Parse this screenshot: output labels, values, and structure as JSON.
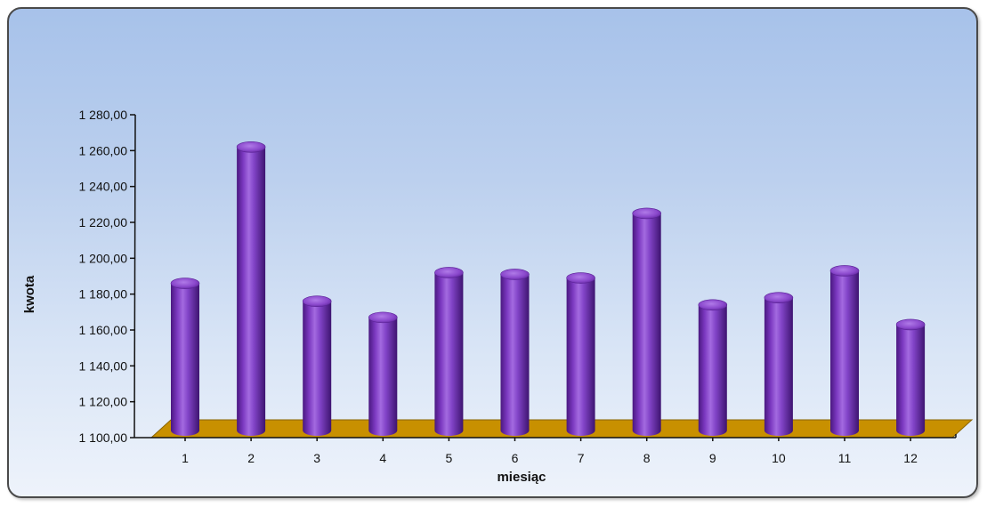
{
  "chart_data": {
    "type": "bar",
    "title": "",
    "xlabel": "miesiąc",
    "ylabel": "kwota",
    "categories": [
      "1",
      "2",
      "3",
      "4",
      "5",
      "6",
      "7",
      "8",
      "9",
      "10",
      "11",
      "12"
    ],
    "values": [
      1186,
      1262,
      1176,
      1167,
      1192,
      1191,
      1189,
      1225,
      1174,
      1178,
      1193,
      1163
    ],
    "ylim": [
      1100,
      1280
    ],
    "yticks": [
      1100,
      1120,
      1140,
      1160,
      1180,
      1200,
      1220,
      1240,
      1260,
      1280
    ],
    "ytick_labels": [
      "1 100,00",
      "1 120,00",
      "1 140,00",
      "1 160,00",
      "1 180,00",
      "1 200,00",
      "1 220,00",
      "1 240,00",
      "1 260,00",
      "1 280,00"
    ],
    "bar_style": "3d-cylinder",
    "bar_color": "#7a35b8",
    "floor_color": "#c89000",
    "grid": false,
    "legend": "none"
  }
}
